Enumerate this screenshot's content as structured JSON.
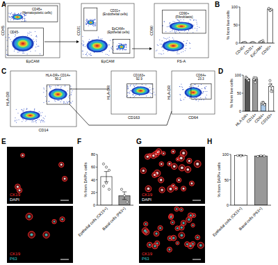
{
  "figure": {
    "panel_labels": [
      "A",
      "B",
      "C",
      "D",
      "E",
      "F",
      "G",
      "H"
    ],
    "flow_A": [
      {
        "xlabel": "EpCAM",
        "ylabel": "CD45",
        "gates": [
          {
            "label": "CD45+",
            "sublabel": "(Hematopoietic cells)"
          },
          {
            "label": "CD45-"
          }
        ]
      },
      {
        "xlabel": "EpCAM",
        "ylabel": "CD31",
        "gates": [
          {
            "label": "CD31+",
            "sublabel": "(Endothelial cells)"
          },
          {
            "label": "EpCAM+",
            "sublabel": "(Epithelial cells)"
          }
        ]
      },
      {
        "xlabel": "FS-A",
        "ylabel": "CD90",
        "gates": [
          {
            "label": "CD90+",
            "sublabel": "(Fibroblasts)"
          }
        ]
      }
    ],
    "flow_C": [
      {
        "xlabel": "CD14",
        "ylabel": "HLA-DR",
        "gates": [
          {
            "label": "HLA-DR+ CD14+",
            "value": 90.2
          }
        ]
      },
      {
        "xlabel": "CD163",
        "ylabel": "HLA-DR",
        "gates": [
          {
            "label": "CD163+",
            "value": 92.9
          }
        ]
      },
      {
        "xlabel": "CD64",
        "ylabel": "HLA-DR",
        "gates": [
          {
            "label": "CD64+",
            "value": 23.3
          }
        ]
      }
    ],
    "micro_E": [
      {
        "channels": [
          {
            "text": "CK19",
            "color": "#ff3030"
          },
          {
            "text": "DAPI",
            "color": "#ffffff"
          }
        ]
      },
      {
        "channels": [
          {
            "text": "CK19",
            "color": "#ff3030"
          },
          {
            "text": "P63",
            "color": "#33cccc"
          }
        ]
      }
    ],
    "micro_G": [
      {
        "channels": [
          {
            "text": "CK19",
            "color": "#ff3030"
          },
          {
            "text": "DAPI",
            "color": "#ffffff"
          }
        ]
      },
      {
        "channels": [
          {
            "text": "CK19",
            "color": "#ff3030"
          },
          {
            "text": "P63",
            "color": "#33cccc"
          }
        ]
      }
    ]
  },
  "chart_data": [
    {
      "type": "bar",
      "ylabel": "% from live cells",
      "categories": [
        "CD45+",
        "CD31+",
        "EpCAM+",
        "CD90+"
      ],
      "values": [
        1,
        1,
        4,
        93
      ],
      "errors": [
        0.5,
        0.5,
        1.5,
        2
      ],
      "points": [
        [
          0.5,
          1,
          2,
          0.3,
          1.2
        ],
        [
          0.5,
          1.5,
          1,
          0.8,
          1.2
        ],
        [
          2,
          4,
          7,
          3,
          4
        ],
        [
          95,
          90,
          93,
          96,
          91
        ]
      ],
      "colors": [
        "#ffffff",
        "#ffffff",
        "#ffffff",
        "#ffffff"
      ],
      "ylim": [
        0,
        100
      ],
      "yticks": [
        0,
        50,
        100
      ]
    },
    {
      "type": "bar",
      "ylabel": "% from live cells",
      "categories": [
        "HLA-DR+",
        "CD14+",
        "CD64+",
        "CD163+"
      ],
      "values": [
        90,
        89,
        22,
        68
      ],
      "errors": [
        3,
        4,
        3,
        8
      ],
      "points": [
        [
          95,
          88,
          85,
          92,
          90
        ],
        [
          93,
          80,
          92,
          88,
          92
        ],
        [
          20,
          25,
          18,
          24,
          23
        ],
        [
          85,
          70,
          55,
          75,
          55
        ]
      ],
      "colors": [
        "#555555",
        "#999999",
        "#a9c8e8",
        "#ffffff"
      ],
      "ylim": [
        0,
        100
      ],
      "yticks": [
        0,
        50,
        100
      ]
    },
    {
      "type": "bar",
      "ylabel": "% from DAPI+ cells",
      "categories": [
        "Epithelial cells (CK19+)",
        "Basal cells (P63+)"
      ],
      "values": [
        45,
        15
      ],
      "errors": [
        8,
        6
      ],
      "points": [
        [
          65,
          60,
          55,
          30,
          35,
          25
        ],
        [
          25,
          15,
          5
        ]
      ],
      "colors": [
        "#ffffff",
        "#999999"
      ],
      "ylim": [
        0,
        80
      ],
      "yticks": [
        0,
        20,
        40,
        60,
        80
      ]
    },
    {
      "type": "bar",
      "ylabel": "% from DAPI+ cells",
      "categories": [
        "Epithelial cells (CK19+)",
        "Basal cells (P63+)"
      ],
      "values": [
        98,
        97
      ],
      "errors": [
        1,
        1
      ],
      "points": [
        [
          98,
          97,
          99
        ],
        [
          96,
          98,
          97
        ]
      ],
      "colors": [
        "#ffffff",
        "#999999"
      ],
      "ylim": [
        0,
        100
      ],
      "yticks": [
        0,
        50,
        100
      ]
    }
  ]
}
